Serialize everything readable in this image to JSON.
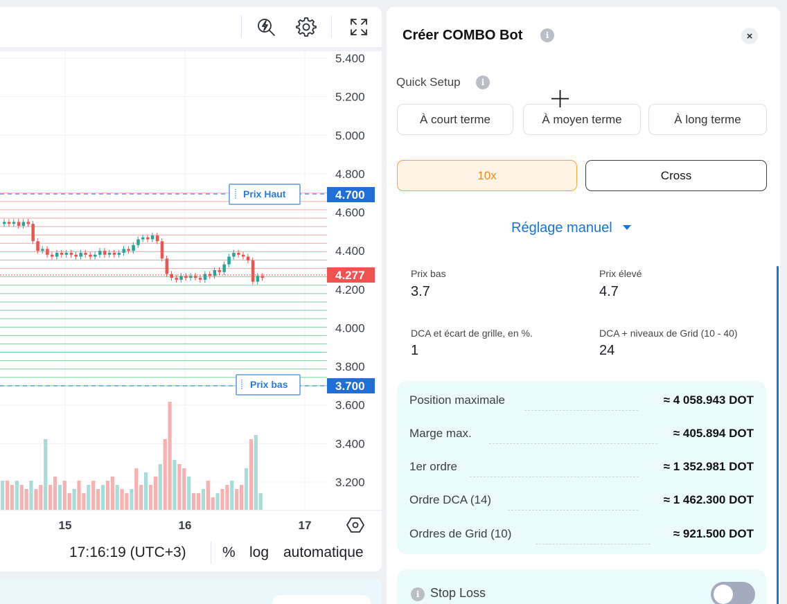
{
  "chart": {
    "price_ticks": [
      "5.400",
      "5.200",
      "5.000",
      "4.800",
      "4.600",
      "4.400",
      "4.200",
      "4.000",
      "3.800",
      "3.600",
      "3.400",
      "3.200"
    ],
    "date_ticks": [
      "15",
      "16",
      "17"
    ],
    "upper_label": "Prix Haut",
    "upper_value": "4.700",
    "lower_label": "Prix bas",
    "lower_value": "3.700",
    "current_price": "4.277",
    "colors": {
      "up": "#26a69a",
      "down": "#ef5350",
      "vol_up": "#a8dcd9",
      "vol_down": "#f7b1b0",
      "grid_sell": "#f2a7a7",
      "grid_buy": "#7ccfa0",
      "limit": "#4a90e2"
    }
  },
  "footer": {
    "time": "17:16:19 (UTC+3)",
    "percent": "%",
    "log": "log",
    "auto": "automatique"
  },
  "icons": {
    "lightning_search": "lightning-search-icon",
    "settings": "gear-icon",
    "fullscreen": "fullscreen-icon",
    "axis_settings": "hexagon-settings-icon",
    "close": "close-icon",
    "caret": "caret-down-icon"
  },
  "bot": {
    "title": "Créer COMBO Bot",
    "close": "×",
    "info": "i",
    "quick_setup": "Quick Setup",
    "presets": [
      "À court terme",
      "À moyen terme",
      "À long terme"
    ],
    "leverage": "10x",
    "margin_mode": "Cross",
    "manual": "Réglage manuel",
    "fields": {
      "low_label": "Prix bas",
      "low_value": "3.7",
      "high_label": "Prix élevé",
      "high_value": "4.7",
      "gap_label": "DCA et écart de grille, en %.",
      "gap_value": "1",
      "levels_label": "DCA + niveaux de Grid (10 - 40)",
      "levels_value": "24"
    },
    "summary": [
      {
        "label": "Position maximale",
        "value": "≈ 4 058.943 DOT"
      },
      {
        "label": "Marge max.",
        "value": "≈ 405.894 DOT"
      },
      {
        "label": "1er ordre",
        "value": "≈ 1 352.981 DOT"
      },
      {
        "label": "Ordre DCA (14)",
        "value": "≈ 1 462.300 DOT"
      },
      {
        "label": "Ordres de Grid (10)",
        "value": "≈ 921.500 DOT"
      }
    ],
    "stop_loss": "Stop Loss",
    "stop_loss_enabled": false
  }
}
